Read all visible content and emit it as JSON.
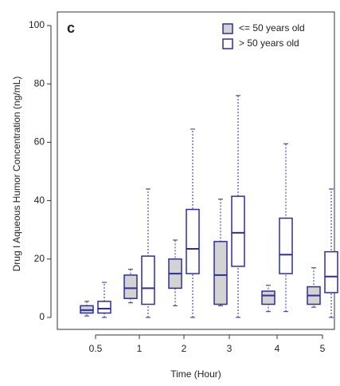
{
  "chart_data": {
    "type": "box",
    "panel_label": "c",
    "x_label": "Time (Hour)",
    "y_label": "Drug I Aqueous Humor Concentration (ng/mL)",
    "categories": [
      "0.5",
      "1",
      "2",
      "3",
      "4",
      "5"
    ],
    "line_color": "#2e2e9a",
    "ylim": [
      0,
      100
    ],
    "yticks": [
      0,
      20,
      40,
      60,
      80,
      100
    ],
    "legend": "top-right",
    "series": [
      {
        "name": "<= 50 years old",
        "color": "#d3d3d3",
        "boxes": [
          {
            "min": 0.5,
            "q1": 1.5,
            "median": 2.5,
            "q3": 4,
            "max": 5.5
          },
          {
            "min": 5,
            "q1": 6.5,
            "median": 10,
            "q3": 14.5,
            "max": 16.5
          },
          {
            "min": 4,
            "q1": 10,
            "median": 15,
            "q3": 20,
            "max": 26.5
          },
          {
            "min": 4,
            "q1": 4.5,
            "median": 14.5,
            "q3": 26,
            "max": 40.5
          },
          {
            "min": 2,
            "q1": 4.5,
            "median": 7.5,
            "q3": 9,
            "max": 11
          },
          {
            "min": 3.5,
            "q1": 4.5,
            "median": 7.5,
            "q3": 10.5,
            "max": 17
          }
        ]
      },
      {
        "name": "> 50 years old",
        "color": "#ffffff",
        "boxes": [
          {
            "min": 0,
            "q1": 1.5,
            "median": 3,
            "q3": 5.5,
            "max": 12
          },
          {
            "min": 0,
            "q1": 4.5,
            "median": 10,
            "q3": 21,
            "max": 44
          },
          {
            "min": 0,
            "q1": 15,
            "median": 23.5,
            "q3": 37,
            "max": 64.5
          },
          {
            "min": 0,
            "q1": 17.5,
            "median": 29,
            "q3": 41.5,
            "max": 76
          },
          {
            "min": 2,
            "q1": 15,
            "median": 21.5,
            "q3": 34,
            "max": 59.5
          },
          {
            "min": 0,
            "q1": 8.5,
            "median": 14,
            "q3": 22.5,
            "max": 44
          }
        ]
      }
    ]
  }
}
